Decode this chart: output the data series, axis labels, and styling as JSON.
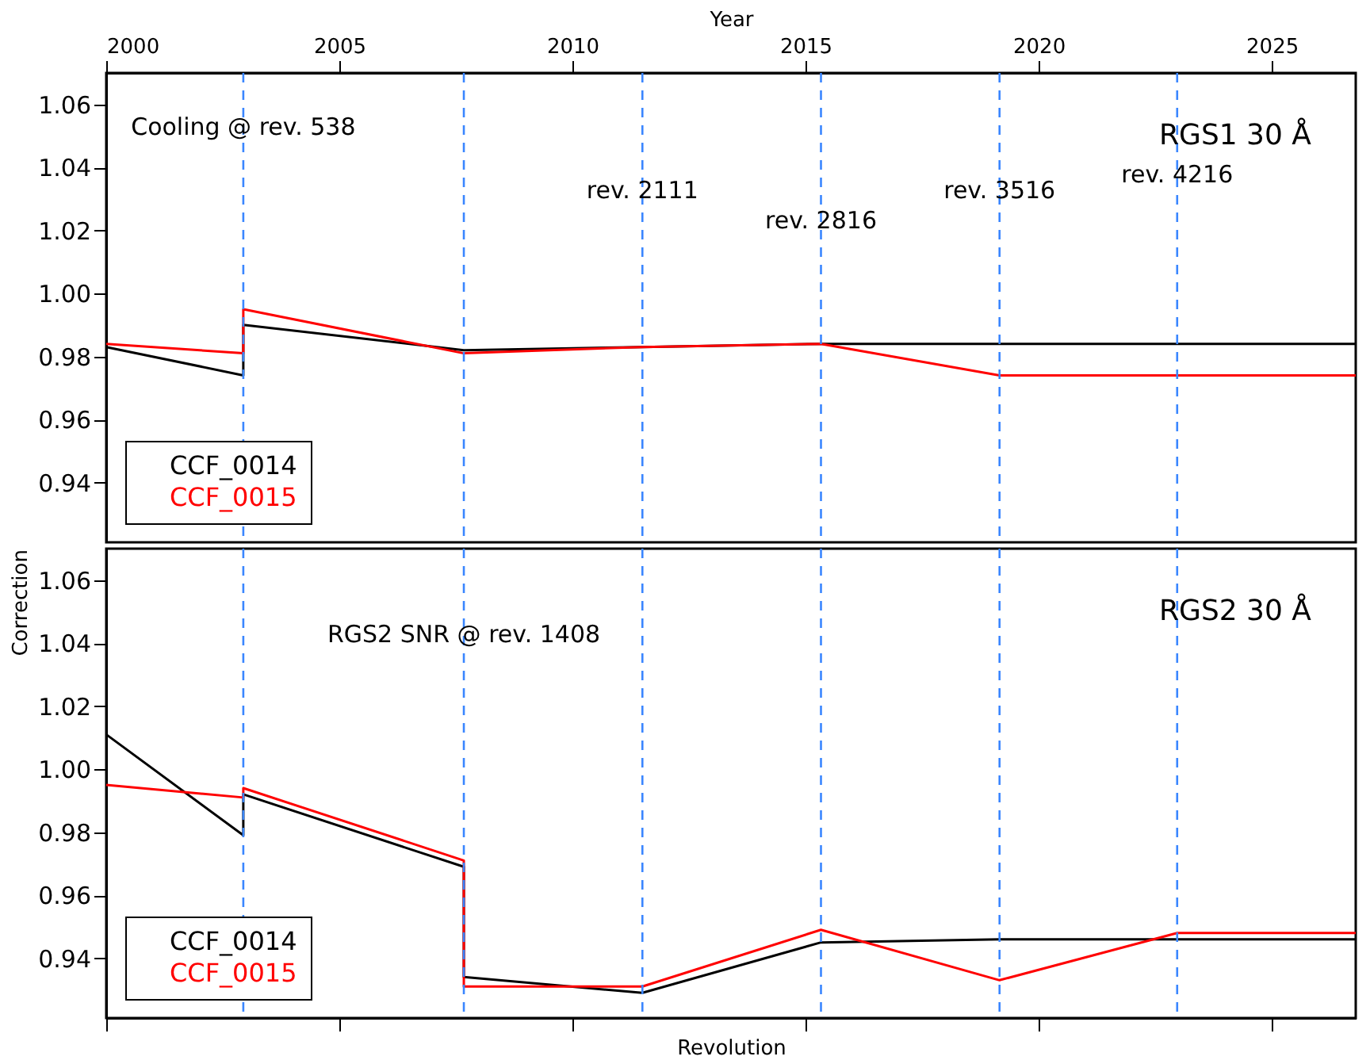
{
  "chart_data": [
    {
      "type": "line",
      "xlabel": "Year",
      "annotations": [
        "RGS1 30 Å"
      ],
      "xlim": [
        2000,
        2026.8
      ],
      "xticks": [
        2000,
        2005,
        2010,
        2015,
        2020,
        2025
      ],
      "ylim": [
        0.921,
        1.07
      ],
      "yticks": [
        0.94,
        0.96,
        0.98,
        {
          "value": 1.0,
          "label": "1.00"
        },
        1.02,
        1.04,
        1.06
      ],
      "grid": false,
      "legend": "bottom left",
      "marker": "none",
      "line_style": "solid",
      "series": [
        {
          "name": "CCF_0014",
          "color": "#000000",
          "x": [
            2000,
            2002.94,
            2002.94,
            2007.67,
            2011.5,
            2015.33,
            2026.8
          ],
          "values": [
            0.983,
            0.974,
            0.99,
            0.982,
            0.983,
            0.984,
            0.984
          ]
        },
        {
          "name": "CCF_0015",
          "color": "#ff0000",
          "x": [
            2000,
            2002.94,
            2002.94,
            2007.67,
            2011.5,
            2015.33,
            2019.16,
            2022.97,
            2026.8
          ],
          "values": [
            0.984,
            0.981,
            0.995,
            0.981,
            0.983,
            0.984,
            0.974,
            0.974,
            0.974
          ]
        }
      ],
      "ref_lines": [
        {
          "axis": "x",
          "value": 2002.94,
          "label": "Cooling @ rev. 538",
          "color": "#3a86ff",
          "line_style": "dashed"
        },
        {
          "axis": "x",
          "value": 2007.67,
          "color": "#3a86ff",
          "line_style": "dashed"
        },
        {
          "axis": "x",
          "value": 2011.5,
          "label": "rev. 2111",
          "color": "#3a86ff",
          "line_style": "dashed"
        },
        {
          "axis": "x",
          "value": 2015.33,
          "label": "rev. 2816",
          "color": "#3a86ff",
          "line_style": "dashed"
        },
        {
          "axis": "x",
          "value": 2019.16,
          "label": "rev. 3516",
          "color": "#3a86ff",
          "line_style": "dashed"
        },
        {
          "axis": "x",
          "value": 2022.97,
          "label": "rev. 4216",
          "color": "#3a86ff",
          "line_style": "dashed"
        }
      ]
    },
    {
      "type": "line",
      "xlabel": "Revolution",
      "ylabel": "Correction",
      "annotations": [
        "RGS2 30 Å"
      ],
      "xlim": [
        2000,
        2026.8
      ],
      "xticks": [
        2000,
        2005,
        2010,
        2015,
        2020,
        2025
      ],
      "ylim": [
        0.921,
        1.07
      ],
      "yticks": [
        0.94,
        0.96,
        0.98,
        {
          "value": 1.0,
          "label": "1.00"
        },
        1.02,
        1.04,
        1.06
      ],
      "tick_labels": "y",
      "grid": false,
      "legend": "bottom left",
      "marker": "none",
      "line_style": "solid",
      "series": [
        {
          "name": "CCF_0014",
          "color": "#000000",
          "x": [
            2000,
            2002.94,
            2002.94,
            2007.67,
            2007.67,
            2011.5,
            2015.33,
            2019.16,
            2026.8
          ],
          "values": [
            1.011,
            0.979,
            0.992,
            0.969,
            0.934,
            0.929,
            0.945,
            0.946,
            0.946
          ]
        },
        {
          "name": "CCF_0015",
          "color": "#ff0000",
          "x": [
            2000,
            2002.94,
            2002.94,
            2007.67,
            2007.67,
            2011.5,
            2015.33,
            2019.16,
            2022.97,
            2026.8
          ],
          "values": [
            0.995,
            0.991,
            0.994,
            0.971,
            0.931,
            0.931,
            0.949,
            0.933,
            0.948,
            0.948
          ]
        }
      ],
      "ref_lines": [
        {
          "axis": "x",
          "value": 2002.94,
          "color": "#3a86ff",
          "line_style": "dashed"
        },
        {
          "axis": "x",
          "value": 2007.67,
          "label": "RGS2 SNR @ rev. 1408",
          "color": "#3a86ff",
          "line_style": "dashed"
        },
        {
          "axis": "x",
          "value": 2011.5,
          "color": "#3a86ff",
          "line_style": "dashed"
        },
        {
          "axis": "x",
          "value": 2015.33,
          "color": "#3a86ff",
          "line_style": "dashed"
        },
        {
          "axis": "x",
          "value": 2019.16,
          "color": "#3a86ff",
          "line_style": "dashed"
        },
        {
          "axis": "x",
          "value": 2022.97,
          "color": "#3a86ff",
          "line_style": "dashed"
        }
      ]
    }
  ]
}
